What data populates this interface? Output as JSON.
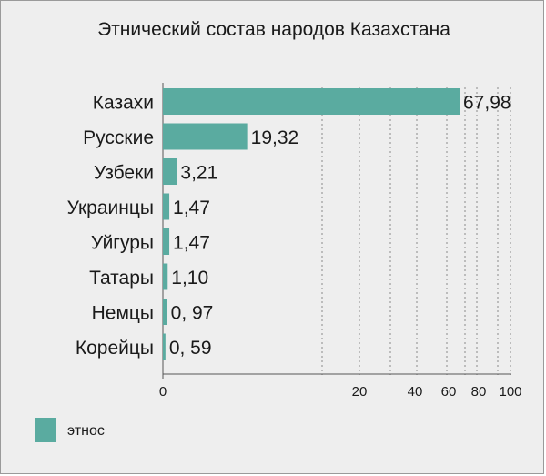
{
  "chart_data": {
    "type": "bar",
    "orientation": "horizontal",
    "title": "Этнический состав народов Казахстана",
    "categories": [
      "Казахи",
      "Русские",
      "Узбеки",
      "Украинцы",
      "Уйгуры",
      "Татары",
      "Немцы",
      "Корейцы"
    ],
    "series": [
      {
        "name": "этнос",
        "values": [
          67.98,
          19.32,
          3.21,
          1.47,
          1.47,
          1.1,
          0.97,
          0.59
        ],
        "labels": [
          "67,98",
          "19,32",
          "3,21",
          "1,47",
          "1,47",
          "1,10",
          "0, 97",
          "0, 59"
        ]
      }
    ],
    "x_ticks": [
      "0",
      "20",
      "40",
      "60",
      "80",
      "100"
    ],
    "grid": "vertical dotted",
    "legend": "bottom-left",
    "bar_color": "#5aaba0"
  }
}
